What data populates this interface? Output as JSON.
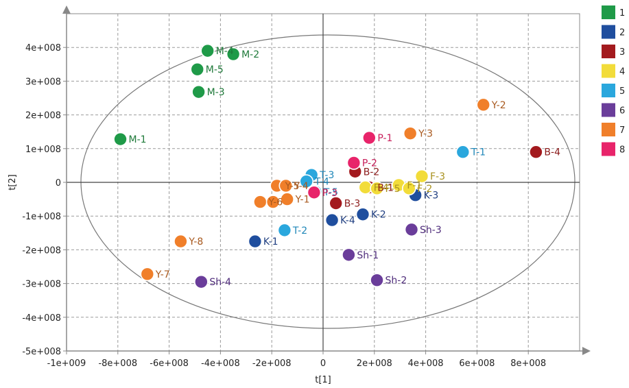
{
  "chart_data": {
    "type": "scatter",
    "xlabel": "t[1]",
    "ylabel": "t[2]",
    "xlim": [
      -1000000000,
      1000000000
    ],
    "ylim": [
      -500000000,
      500000000
    ],
    "x_ticks": [
      -1000000000,
      -800000000,
      -600000000,
      -400000000,
      -200000000,
      0,
      200000000,
      400000000,
      600000000,
      800000000
    ],
    "x_tick_labels": [
      "-1e+009",
      "-8e+008",
      "-6e+008",
      "-4e+008",
      "-2e+008",
      "0",
      "2e+008",
      "4e+008",
      "6e+008",
      "8e+008"
    ],
    "y_ticks": [
      400000000,
      300000000,
      200000000,
      100000000,
      0,
      -100000000,
      -200000000,
      -300000000,
      -400000000,
      -500000000
    ],
    "y_tick_labels": [
      "4e+008",
      "3e+008",
      "2e+008",
      "1e+008",
      "0",
      "-1e+008",
      "-2e+008",
      "-3e+008",
      "-4e+008",
      "-5e+008"
    ],
    "grid": true,
    "confidence_ellipse": true,
    "legend_position": "right",
    "series": [
      {
        "name": "1",
        "color": "#1f9a48",
        "label_color": "#1f7a3a",
        "points": [
          {
            "label": "M-4",
            "x": -450000000,
            "y": 390000000
          },
          {
            "label": "M-2",
            "x": -350000000,
            "y": 380000000
          },
          {
            "label": "M-5",
            "x": -490000000,
            "y": 335000000
          },
          {
            "label": "M-3",
            "x": -485000000,
            "y": 268000000
          },
          {
            "label": "M-1",
            "x": -790000000,
            "y": 128000000
          }
        ]
      },
      {
        "name": "2",
        "color": "#1f4e9e",
        "label_color": "#1f3e80",
        "points": [
          {
            "label": "K-3",
            "x": 360000000,
            "y": -38000000
          },
          {
            "label": "K-2",
            "x": 155000000,
            "y": -95000000
          },
          {
            "label": "K-4",
            "x": 35000000,
            "y": -112000000
          },
          {
            "label": "K-1",
            "x": -265000000,
            "y": -175000000
          }
        ]
      },
      {
        "name": "3",
        "color": "#a31a1e",
        "label_color": "#8b1a1a",
        "points": [
          {
            "label": "B-4",
            "x": 830000000,
            "y": 90000000
          },
          {
            "label": "B-2",
            "x": 125000000,
            "y": 32000000
          },
          {
            "label": "B-1",
            "x": 180000000,
            "y": -15000000
          },
          {
            "label": "B-3",
            "x": 50000000,
            "y": -62000000
          }
        ]
      },
      {
        "name": "4",
        "color": "#f2dc3a",
        "label_color": "#a8911e",
        "points": [
          {
            "label": "F-3",
            "x": 385000000,
            "y": 18000000
          },
          {
            "label": "F-1",
            "x": 295000000,
            "y": -8000000
          },
          {
            "label": "F-2",
            "x": 335000000,
            "y": -18000000
          },
          {
            "label": "F-4",
            "x": 165000000,
            "y": -15000000
          },
          {
            "label": "F-5",
            "x": 210000000,
            "y": -18000000
          }
        ]
      },
      {
        "name": "5",
        "color": "#2aa7dd",
        "label_color": "#1e86b8",
        "points": [
          {
            "label": "T-1",
            "x": 545000000,
            "y": 90000000
          },
          {
            "label": "T-3",
            "x": -45000000,
            "y": 22000000
          },
          {
            "label": "T-4",
            "x": -65000000,
            "y": 3000000
          },
          {
            "label": "T-5",
            "x": -30000000,
            "y": -28000000
          },
          {
            "label": "T-2",
            "x": -150000000,
            "y": -142000000
          }
        ]
      },
      {
        "name": "6",
        "color": "#6a3d9a",
        "label_color": "#4e2b7a",
        "points": [
          {
            "label": "Sh-3",
            "x": 345000000,
            "y": -140000000
          },
          {
            "label": "Sh-1",
            "x": 100000000,
            "y": -215000000
          },
          {
            "label": "Sh-2",
            "x": 210000000,
            "y": -290000000
          },
          {
            "label": "Sh-4",
            "x": -475000000,
            "y": -295000000
          }
        ]
      },
      {
        "name": "7",
        "color": "#f07f2a",
        "label_color": "#a8591e",
        "points": [
          {
            "label": "Y-2",
            "x": 625000000,
            "y": 230000000
          },
          {
            "label": "Y-3",
            "x": 340000000,
            "y": 145000000
          },
          {
            "label": "Y-5",
            "x": -180000000,
            "y": -10000000
          },
          {
            "label": "Y-4",
            "x": -145000000,
            "y": -10000000
          },
          {
            "label": "Y-6",
            "x": -245000000,
            "y": -58000000
          },
          {
            "label": "",
            "x": -195000000,
            "y": -58000000
          },
          {
            "label": "Y-1",
            "x": -140000000,
            "y": -50000000
          },
          {
            "label": "Y-8",
            "x": -555000000,
            "y": -175000000
          },
          {
            "label": "Y-7",
            "x": -685000000,
            "y": -272000000
          }
        ]
      },
      {
        "name": "8",
        "color": "#e8246a",
        "label_color": "#c81e5a",
        "points": [
          {
            "label": "P-1",
            "x": 180000000,
            "y": 132000000
          },
          {
            "label": "P-2",
            "x": 120000000,
            "y": 58000000
          },
          {
            "label": "P-3",
            "x": -35000000,
            "y": -30000000
          }
        ]
      }
    ]
  }
}
